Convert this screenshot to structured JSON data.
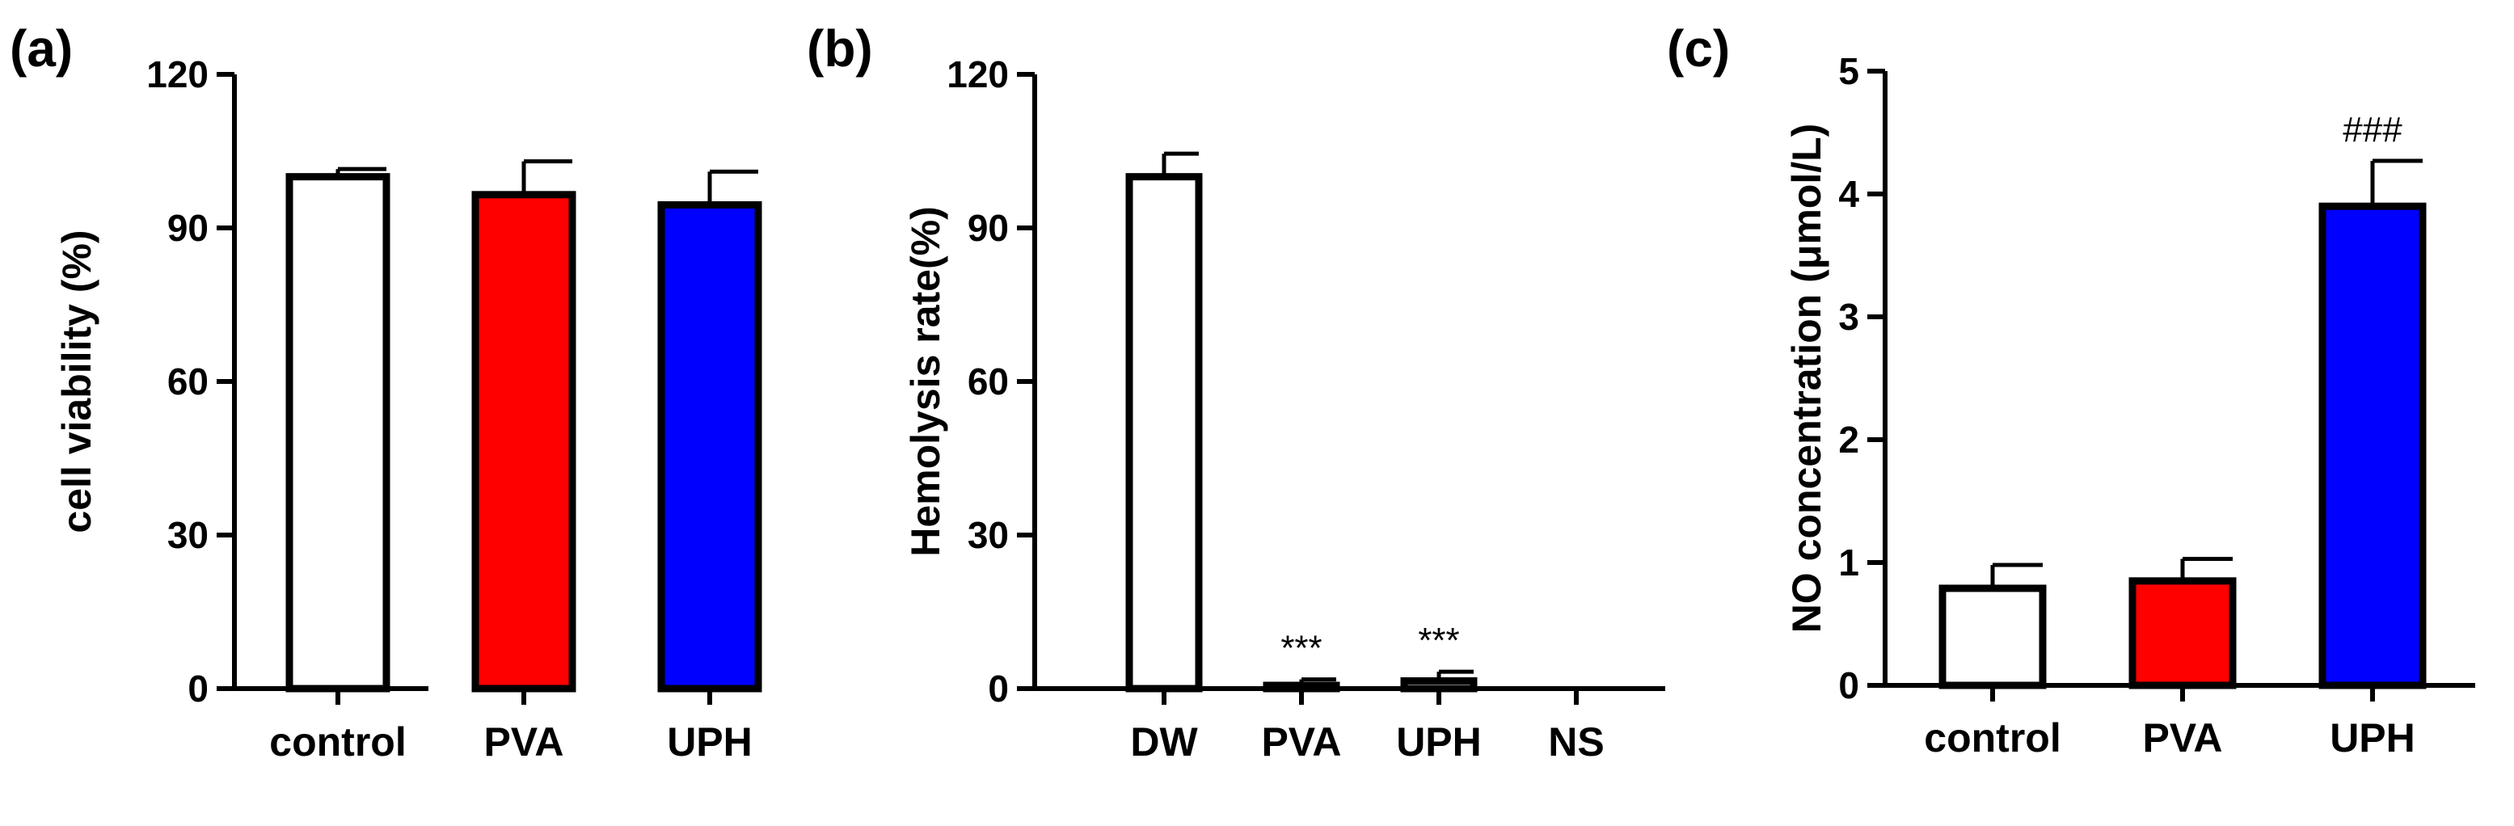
{
  "chart_data": [
    {
      "type": "bar",
      "panel_label": "(a)",
      "ylabel": "cell viability (%)",
      "ylim": [
        0,
        120
      ],
      "yticks": [
        0,
        30,
        60,
        90,
        120
      ],
      "categories": [
        "control",
        "PVA",
        "UPH"
      ],
      "values": [
        100,
        96.5,
        94.5
      ],
      "errors": [
        1.5,
        6.5,
        6.5
      ],
      "colors": [
        "#ffffff",
        "#ff0000",
        "#0000ff"
      ],
      "annotations": [
        "",
        "",
        ""
      ]
    },
    {
      "type": "bar",
      "panel_label": "(b)",
      "ylabel": "Hemolysis rate(%)",
      "ylim": [
        0,
        120
      ],
      "yticks": [
        0,
        30,
        60,
        90,
        120
      ],
      "categories": [
        "DW",
        "PVA",
        "UPH",
        "NS"
      ],
      "values": [
        100,
        0.3,
        1.5,
        0
      ],
      "errors": [
        4.5,
        1.5,
        1.8,
        0
      ],
      "colors": [
        "#ffffff",
        "#ffffff",
        "#ffffff",
        "#ffffff"
      ],
      "annotations": [
        "",
        "***",
        "***",
        ""
      ]
    },
    {
      "type": "bar",
      "panel_label": "(c)",
      "ylabel": "NO concentration (μmol/L)",
      "ylim": [
        0,
        5
      ],
      "yticks": [
        0,
        1,
        2,
        3,
        4,
        5
      ],
      "categories": [
        "control",
        "PVA",
        "UPH"
      ],
      "values": [
        0.79,
        0.85,
        3.9
      ],
      "errors": [
        0.19,
        0.18,
        0.37
      ],
      "colors": [
        "#ffffff",
        "#ff0000",
        "#0000ff"
      ],
      "annotations": [
        "",
        "",
        "###"
      ]
    }
  ]
}
